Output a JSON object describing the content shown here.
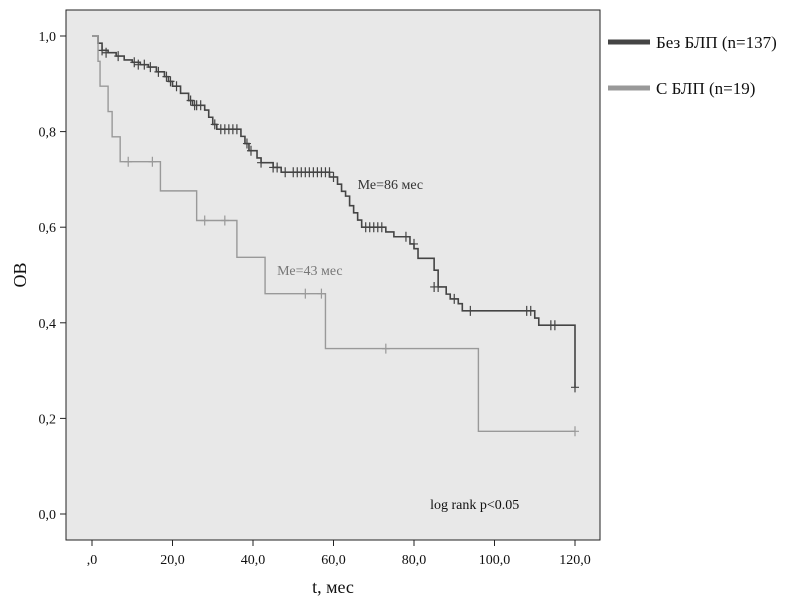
{
  "chart_data": {
    "type": "line",
    "xlabel": "t, мес",
    "ylabel": "ОВ",
    "xlim": [
      0,
      120
    ],
    "ylim": [
      0,
      1
    ],
    "xticks": [
      0,
      20,
      40,
      60,
      80,
      100,
      120
    ],
    "xtick_labels": [
      ",0",
      "20,0",
      "40,0",
      "60,0",
      "80,0",
      "100,0",
      "120,0"
    ],
    "yticks": [
      0,
      0.2,
      0.4,
      0.6,
      0.8,
      1.0
    ],
    "ytick_labels": [
      "0,0",
      "0,2",
      "0,4",
      "0,6",
      "0,8",
      "1,0"
    ],
    "grid": false,
    "legend_position": "right",
    "series": [
      {
        "name": "Без БЛП (n=137)",
        "color": "#444444",
        "steps": [
          [
            0,
            1.0
          ],
          [
            1.5,
            0.985
          ],
          [
            2.5,
            0.97
          ],
          [
            4,
            0.965
          ],
          [
            6,
            0.958
          ],
          [
            8,
            0.95
          ],
          [
            10,
            0.945
          ],
          [
            12,
            0.94
          ],
          [
            14,
            0.935
          ],
          [
            16,
            0.925
          ],
          [
            18,
            0.915
          ],
          [
            19,
            0.905
          ],
          [
            20,
            0.895
          ],
          [
            22,
            0.88
          ],
          [
            24,
            0.865
          ],
          [
            25,
            0.855
          ],
          [
            28,
            0.845
          ],
          [
            29,
            0.83
          ],
          [
            30,
            0.815
          ],
          [
            31,
            0.805
          ],
          [
            37,
            0.79
          ],
          [
            38,
            0.775
          ],
          [
            39,
            0.76
          ],
          [
            41,
            0.745
          ],
          [
            42,
            0.735
          ],
          [
            45,
            0.725
          ],
          [
            47,
            0.715
          ],
          [
            59,
            0.705
          ],
          [
            61,
            0.69
          ],
          [
            62,
            0.675
          ],
          [
            63,
            0.665
          ],
          [
            64,
            0.645
          ],
          [
            65,
            0.63
          ],
          [
            66,
            0.615
          ],
          [
            67,
            0.6
          ],
          [
            73,
            0.59
          ],
          [
            75,
            0.58
          ],
          [
            79,
            0.565
          ],
          [
            80,
            0.555
          ],
          [
            81,
            0.535
          ],
          [
            85,
            0.51
          ],
          [
            86,
            0.475
          ],
          [
            88,
            0.46
          ],
          [
            89,
            0.45
          ],
          [
            91,
            0.44
          ],
          [
            92,
            0.425
          ],
          [
            110,
            0.41
          ],
          [
            111,
            0.395
          ],
          [
            120,
            0.265
          ]
        ],
        "end_x": 120,
        "censored": [
          [
            2.5,
            0.97
          ],
          [
            3.5,
            0.965
          ],
          [
            6.5,
            0.958
          ],
          [
            10.5,
            0.945
          ],
          [
            11.5,
            0.94
          ],
          [
            13,
            0.94
          ],
          [
            14.5,
            0.935
          ],
          [
            16.5,
            0.925
          ],
          [
            18.5,
            0.915
          ],
          [
            19.5,
            0.905
          ],
          [
            21,
            0.895
          ],
          [
            24.5,
            0.865
          ],
          [
            25.5,
            0.855
          ],
          [
            26,
            0.855
          ],
          [
            27,
            0.855
          ],
          [
            30.5,
            0.815
          ],
          [
            32,
            0.805
          ],
          [
            33,
            0.805
          ],
          [
            34,
            0.805
          ],
          [
            35,
            0.805
          ],
          [
            36,
            0.805
          ],
          [
            38.5,
            0.775
          ],
          [
            39.5,
            0.76
          ],
          [
            42,
            0.735
          ],
          [
            45,
            0.725
          ],
          [
            46,
            0.725
          ],
          [
            48,
            0.715
          ],
          [
            50,
            0.715
          ],
          [
            51,
            0.715
          ],
          [
            52,
            0.715
          ],
          [
            53,
            0.715
          ],
          [
            54,
            0.715
          ],
          [
            55,
            0.715
          ],
          [
            56,
            0.715
          ],
          [
            57,
            0.715
          ],
          [
            58,
            0.715
          ],
          [
            59,
            0.715
          ],
          [
            60,
            0.705
          ],
          [
            68,
            0.6
          ],
          [
            69,
            0.6
          ],
          [
            70,
            0.6
          ],
          [
            71,
            0.6
          ],
          [
            72,
            0.6
          ],
          [
            78,
            0.58
          ],
          [
            80,
            0.565
          ],
          [
            85,
            0.475
          ],
          [
            86,
            0.475
          ],
          [
            90,
            0.45
          ],
          [
            94,
            0.425
          ],
          [
            108,
            0.425
          ],
          [
            109,
            0.425
          ],
          [
            114,
            0.395
          ],
          [
            115,
            0.395
          ],
          [
            120,
            0.265
          ]
        ]
      },
      {
        "name": "С БЛП (n=19)",
        "color": "#999999",
        "steps": [
          [
            0,
            1.0
          ],
          [
            1.5,
            0.947
          ],
          [
            2,
            0.895
          ],
          [
            4,
            0.842
          ],
          [
            5,
            0.789
          ],
          [
            7,
            0.737
          ],
          [
            17,
            0.676
          ],
          [
            26,
            0.614
          ],
          [
            36,
            0.537
          ],
          [
            43,
            0.461
          ],
          [
            58,
            0.346
          ],
          [
            96,
            0.173
          ]
        ],
        "end_x": 120,
        "censored": [
          [
            9,
            0.737
          ],
          [
            15,
            0.737
          ],
          [
            28,
            0.614
          ],
          [
            33,
            0.614
          ],
          [
            53,
            0.461
          ],
          [
            57,
            0.461
          ],
          [
            73,
            0.346
          ],
          [
            120,
            0.173
          ]
        ]
      }
    ],
    "annotations": [
      {
        "text": "Ме=86 мес",
        "x": 66,
        "y": 0.68,
        "color": "#333333"
      },
      {
        "text": "Ме=43 мес",
        "x": 46,
        "y": 0.5,
        "color": "#777777"
      },
      {
        "text": "log rank p<0.05",
        "x": 84,
        "y": 0.01,
        "color": "#111111"
      }
    ]
  }
}
